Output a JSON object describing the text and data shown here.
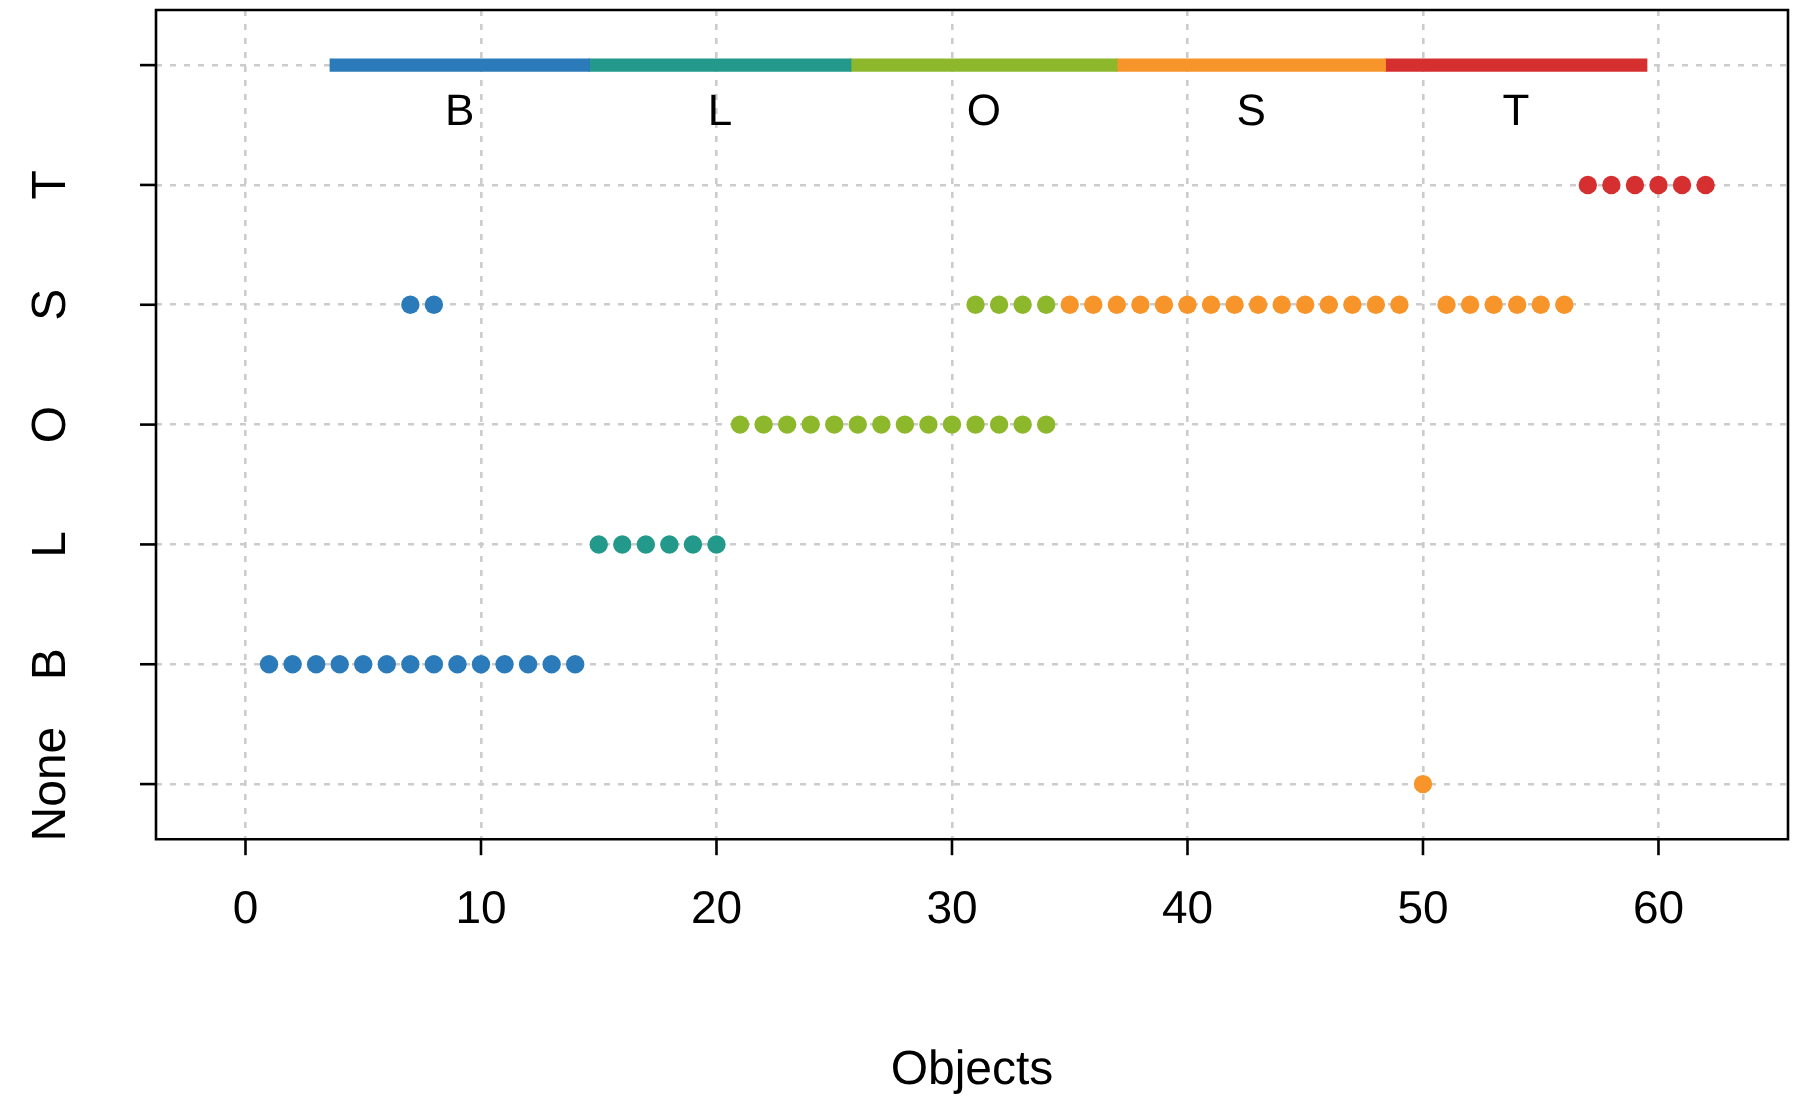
{
  "chart_data": {
    "type": "scatter",
    "orientation": "horizontal",
    "xlabel": "Objects",
    "categories": [
      null,
      "T",
      "S",
      "O",
      "L",
      "B",
      "None"
    ],
    "xlim": [
      -3.8,
      65.5
    ],
    "xticks": [
      0,
      10,
      20,
      30,
      40,
      50,
      60
    ],
    "grid": true,
    "marker": "circle",
    "series": [
      {
        "color": "#2b7bba",
        "x": [
          "B",
          "B",
          "B",
          "B",
          "B",
          "B",
          "B",
          "B",
          "B",
          "B",
          "B",
          "B",
          "B",
          "B",
          "S",
          "S"
        ],
        "values": [
          1,
          2,
          3,
          4,
          5,
          6,
          7,
          8,
          9,
          10,
          11,
          12,
          13,
          14,
          7,
          8
        ]
      },
      {
        "color": "#22998a",
        "x": [
          "L",
          "L",
          "L",
          "L",
          "L",
          "L"
        ],
        "values": [
          15,
          16,
          17,
          18,
          19,
          20
        ]
      },
      {
        "color": "#8db82c",
        "x": [
          "O",
          "O",
          "O",
          "O",
          "O",
          "O",
          "O",
          "O",
          "O",
          "O",
          "O",
          "O",
          "O",
          "O",
          "S",
          "S",
          "S",
          "S"
        ],
        "values": [
          21,
          22,
          23,
          24,
          25,
          26,
          27,
          28,
          29,
          30,
          31,
          32,
          33,
          34,
          31,
          32,
          33,
          34
        ]
      },
      {
        "color": "#f7952b",
        "x": [
          "S",
          "S",
          "S",
          "S",
          "S",
          "S",
          "S",
          "S",
          "S",
          "S",
          "S",
          "S",
          "S",
          "S",
          "S",
          "None",
          "S",
          "S",
          "S",
          "S",
          "S",
          "S"
        ],
        "values": [
          35,
          36,
          37,
          38,
          39,
          40,
          41,
          42,
          43,
          44,
          45,
          46,
          47,
          48,
          49,
          50,
          51,
          52,
          53,
          54,
          55,
          56
        ]
      },
      {
        "color": "#d62f30",
        "x": [
          "T",
          "T",
          "T",
          "T",
          "T",
          "T"
        ],
        "values": [
          57,
          58,
          59,
          60,
          61,
          62
        ]
      },
      {
        "type": "bar",
        "name": "B",
        "color": "#2b7bba",
        "values": [
          11.0,
          null,
          null,
          null,
          null,
          null,
          null
        ],
        "base": [
          3.6,
          null,
          null,
          null,
          null,
          null,
          null
        ]
      },
      {
        "type": "bar",
        "name": "L",
        "color": "#22998a",
        "values": [
          11.1,
          null,
          null,
          null,
          null,
          null,
          null
        ],
        "base": [
          14.6,
          null,
          null,
          null,
          null,
          null,
          null
        ]
      },
      {
        "type": "bar",
        "name": "O",
        "color": "#8db82c",
        "values": [
          11.3,
          null,
          null,
          null,
          null,
          null,
          null
        ],
        "base": [
          25.7,
          null,
          null,
          null,
          null,
          null,
          null
        ]
      },
      {
        "type": "bar",
        "name": "S",
        "color": "#f7952b",
        "values": [
          11.4,
          null,
          null,
          null,
          null,
          null,
          null
        ],
        "base": [
          37.0,
          null,
          null,
          null,
          null,
          null,
          null
        ]
      },
      {
        "type": "bar",
        "name": "T",
        "color": "#d62f30",
        "values": [
          11.1,
          null,
          null,
          null,
          null,
          null,
          null
        ],
        "base": [
          48.4,
          null,
          null,
          null,
          null,
          null,
          null
        ]
      }
    ]
  }
}
